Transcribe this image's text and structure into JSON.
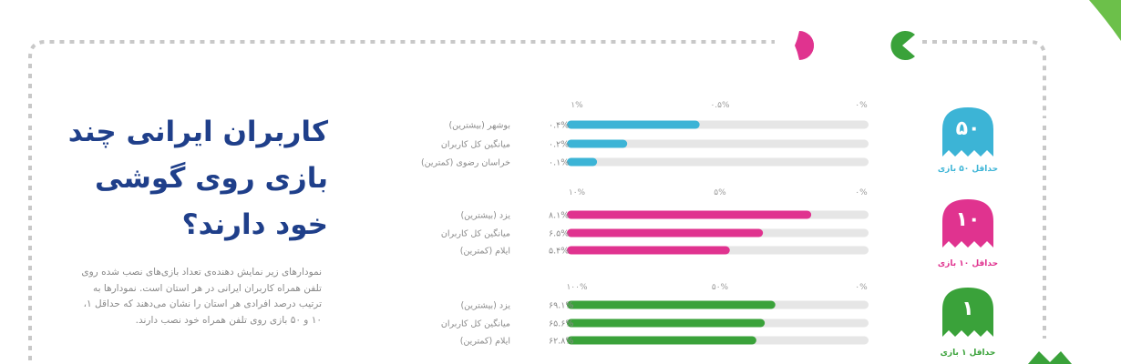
{
  "page": {
    "title": "کاربران ایرانی چند بازی روی گوشی خود دارند؟",
    "description": "نمودارهای زیر نمایش دهنده‌ی تعداد بازی‌های نصب شده روی تلفن همراه کاربران ایرانی در هر استان است. نمودارها به ترتیب درصد افرادی هر استان را نشان می‌دهند که حداقل ۱، ۱۰ و ۵۰ بازی روی تلفن همراه خود نصب دارند."
  },
  "colors": {
    "navy": "#1f3f8a",
    "cyan": "#3cb4d6",
    "pink": "#e0338f",
    "green": "#3aa23a",
    "track": "#e6e6e6",
    "dots": "#c8c8c8"
  },
  "icons": [
    "pacman-pink-icon",
    "pacman-green-icon",
    "ghost-cyan-icon",
    "ghost-pink-icon",
    "ghost-green-icon"
  ],
  "chart_data": [
    {
      "type": "bar",
      "orientation": "horizontal",
      "badge_number": "۵۰",
      "badge_label": "حداقل ۵۰ بازی",
      "color": "#3cb4d6",
      "xlim": [
        0,
        1
      ],
      "ticks": [
        "۰%",
        "۰.۵%",
        "۱%"
      ],
      "categories": [
        "بوشهر (بیشترین)",
        "میانگین کل کاربران",
        "خراسان رضوی (کمترین)"
      ],
      "value_labels": [
        "۰.۴%",
        "۰.۲%",
        "۰.۱%"
      ],
      "values": [
        0.44,
        0.2,
        0.1
      ]
    },
    {
      "type": "bar",
      "orientation": "horizontal",
      "badge_number": "۱۰",
      "badge_label": "حداقل ۱۰ بازی",
      "color": "#e0338f",
      "xlim": [
        0,
        10
      ],
      "ticks": [
        "۰%",
        "۵%",
        "۱۰%"
      ],
      "categories": [
        "یزد (بیشترین)",
        "میانگین کل کاربران",
        "ایلام (کمترین)"
      ],
      "value_labels": [
        "۸.۱%",
        "۶.۵%",
        "۵.۴%"
      ],
      "values": [
        8.1,
        6.5,
        5.4
      ]
    },
    {
      "type": "bar",
      "orientation": "horizontal",
      "badge_number": "۱",
      "badge_label": "حداقل ۱ بازی",
      "color": "#3aa23a",
      "xlim": [
        0,
        100
      ],
      "ticks": [
        "۰%",
        "۵۰%",
        "۱۰۰%"
      ],
      "categories": [
        "یزد (بیشترین)",
        "میانگین کل کاربران",
        "ایلام (کمترین)"
      ],
      "value_labels": [
        "۶۹.۱%",
        "۶۵.۶%",
        "۶۲.۸%"
      ],
      "values": [
        69.1,
        65.6,
        62.8
      ]
    }
  ]
}
